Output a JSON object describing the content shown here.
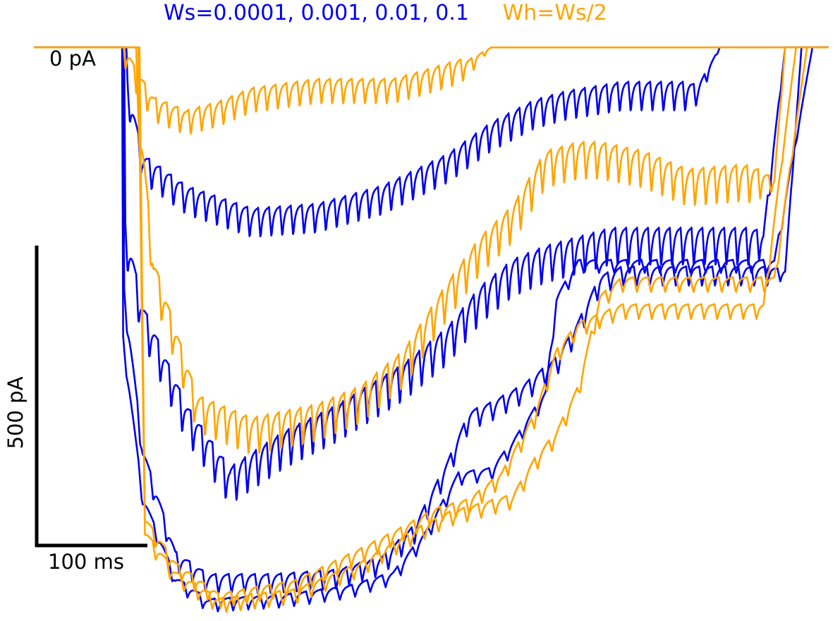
{
  "chart_data": {
    "type": "line",
    "title": "",
    "xlabel": "",
    "ylabel": "",
    "xlim": [
      0,
      730
    ],
    "ylim": [
      -1250,
      30
    ],
    "grid": false,
    "legend": [
      {
        "name": "Ws=0.0001, 0.001, 0.01, 0.1",
        "color": "#0000ee"
      },
      {
        "name": "Wh=Ws/2",
        "color": "#ffa500"
      }
    ],
    "scale_bars": {
      "zero_label": "0 pA",
      "current_label": "500 pA",
      "current_value": 500,
      "time_label": "100 ms",
      "time_value": 100
    },
    "series": [
      {
        "group": "Ws",
        "color": "#0000ee",
        "v_start": 100,
        "v_end": 700,
        "t_drop": 86,
        "osc_amp": 70,
        "osc_period": 10,
        "profile": [
          [
            86,
            -100
          ],
          [
            100,
            -260
          ],
          [
            140,
            -330
          ],
          [
            200,
            -380
          ],
          [
            260,
            -370
          ],
          [
            320,
            -330
          ],
          [
            380,
            -260
          ],
          [
            420,
            -190
          ],
          [
            460,
            -140
          ],
          [
            490,
            -120
          ],
          [
            540,
            -100
          ],
          [
            610,
            -100
          ],
          [
            630,
            0
          ]
        ]
      },
      {
        "group": "Ws",
        "color": "#0000ee",
        "v_start": 100,
        "v_end": 700,
        "t_drop": 84,
        "osc_amp": 90,
        "osc_period": 10,
        "profile": [
          [
            84,
            -420
          ],
          [
            100,
            -600
          ],
          [
            140,
            -820
          ],
          [
            180,
            -960
          ],
          [
            230,
            -880
          ],
          [
            280,
            -820
          ],
          [
            340,
            -730
          ],
          [
            380,
            -650
          ],
          [
            410,
            -560
          ],
          [
            440,
            -500
          ],
          [
            470,
            -470
          ],
          [
            530,
            -430
          ],
          [
            560,
            -430
          ],
          [
            600,
            -430
          ],
          [
            640,
            -430
          ],
          [
            670,
            -430
          ],
          [
            690,
            0
          ]
        ]
      },
      {
        "group": "Ws",
        "color": "#0000ee",
        "v_start": 100,
        "v_end": 700,
        "t_drop": 83,
        "osc_amp": 45,
        "osc_period": 12,
        "profile": [
          [
            83,
            -550
          ],
          [
            100,
            -900
          ],
          [
            130,
            -1130
          ],
          [
            160,
            -1180
          ],
          [
            220,
            -1180
          ],
          [
            280,
            -1170
          ],
          [
            320,
            -1140
          ],
          [
            350,
            -1070
          ],
          [
            380,
            -930
          ],
          [
            400,
            -820
          ],
          [
            420,
            -800
          ],
          [
            450,
            -760
          ],
          [
            480,
            -700
          ],
          [
            500,
            -620
          ],
          [
            520,
            -520
          ],
          [
            540,
            -500
          ],
          [
            560,
            -500
          ],
          [
            650,
            -500
          ],
          [
            690,
            -500
          ],
          [
            705,
            0
          ]
        ]
      },
      {
        "group": "Ws",
        "color": "#0000ee",
        "v_start": 100,
        "v_end": 700,
        "t_drop": 82,
        "osc_amp": 30,
        "osc_period": 14,
        "profile": [
          [
            82,
            -650
          ],
          [
            100,
            -1000
          ],
          [
            130,
            -1180
          ],
          [
            160,
            -1230
          ],
          [
            230,
            -1220
          ],
          [
            290,
            -1200
          ],
          [
            330,
            -1170
          ],
          [
            360,
            -1080
          ],
          [
            390,
            -950
          ],
          [
            420,
            -940
          ],
          [
            440,
            -880
          ],
          [
            470,
            -770
          ],
          [
            480,
            -560
          ],
          [
            500,
            -480
          ],
          [
            520,
            -480
          ],
          [
            540,
            -480
          ],
          [
            580,
            -480
          ],
          [
            650,
            -480
          ],
          [
            680,
            -480
          ],
          [
            715,
            0
          ]
        ]
      },
      {
        "group": "Wh",
        "color": "#ffa500",
        "v_start": 100,
        "v_end": 700,
        "t_drop": 82,
        "osc_amp": 60,
        "osc_period": 10,
        "profile": [
          [
            82,
            0
          ],
          [
            92,
            -60
          ],
          [
            110,
            -130
          ],
          [
            140,
            -160
          ],
          [
            170,
            -140
          ],
          [
            200,
            -110
          ],
          [
            260,
            -90
          ],
          [
            330,
            -90
          ],
          [
            360,
            -70
          ],
          [
            400,
            -40
          ],
          [
            420,
            0
          ]
        ]
      },
      {
        "group": "Wh",
        "color": "#ffa500",
        "v_start": 100,
        "v_end": 700,
        "t_drop": 95,
        "osc_amp": 90,
        "osc_period": 10,
        "profile": [
          [
            95,
            -120
          ],
          [
            110,
            -500
          ],
          [
            150,
            -800
          ],
          [
            200,
            -850
          ],
          [
            260,
            -820
          ],
          [
            300,
            -780
          ],
          [
            340,
            -700
          ],
          [
            380,
            -550
          ],
          [
            410,
            -450
          ],
          [
            440,
            -380
          ],
          [
            470,
            -260
          ],
          [
            500,
            -240
          ],
          [
            520,
            -240
          ],
          [
            560,
            -260
          ],
          [
            600,
            -300
          ],
          [
            650,
            -290
          ],
          [
            680,
            -300
          ],
          [
            690,
            0
          ]
        ]
      },
      {
        "group": "Wh",
        "color": "#ffa500",
        "v_start": 100,
        "v_end": 700,
        "t_drop": 97,
        "osc_amp": 35,
        "osc_period": 12,
        "profile": [
          [
            97,
            0
          ],
          [
            102,
            -1050
          ],
          [
            130,
            -1150
          ],
          [
            170,
            -1220
          ],
          [
            240,
            -1190
          ],
          [
            300,
            -1120
          ],
          [
            340,
            -1070
          ],
          [
            370,
            -1030
          ],
          [
            400,
            -1010
          ],
          [
            430,
            -950
          ],
          [
            460,
            -820
          ],
          [
            480,
            -680
          ],
          [
            500,
            -620
          ],
          [
            520,
            -600
          ],
          [
            540,
            -580
          ],
          [
            560,
            -580
          ],
          [
            620,
            -580
          ],
          [
            670,
            -580
          ],
          [
            700,
            0
          ]
        ]
      },
      {
        "group": "Wh",
        "color": "#ffa500",
        "v_start": 100,
        "v_end": 700,
        "t_drop": 96,
        "osc_amp": 35,
        "osc_period": 13,
        "profile": [
          [
            96,
            0
          ],
          [
            102,
            -1080
          ],
          [
            130,
            -1170
          ],
          [
            170,
            -1230
          ],
          [
            240,
            -1210
          ],
          [
            300,
            -1150
          ],
          [
            340,
            -1090
          ],
          [
            380,
            -1040
          ],
          [
            410,
            -1020
          ],
          [
            440,
            -1000
          ],
          [
            460,
            -920
          ],
          [
            480,
            -860
          ],
          [
            500,
            -760
          ],
          [
            520,
            -560
          ],
          [
            540,
            -520
          ],
          [
            560,
            -520
          ],
          [
            620,
            -520
          ],
          [
            680,
            -520
          ],
          [
            710,
            0
          ]
        ]
      }
    ]
  }
}
